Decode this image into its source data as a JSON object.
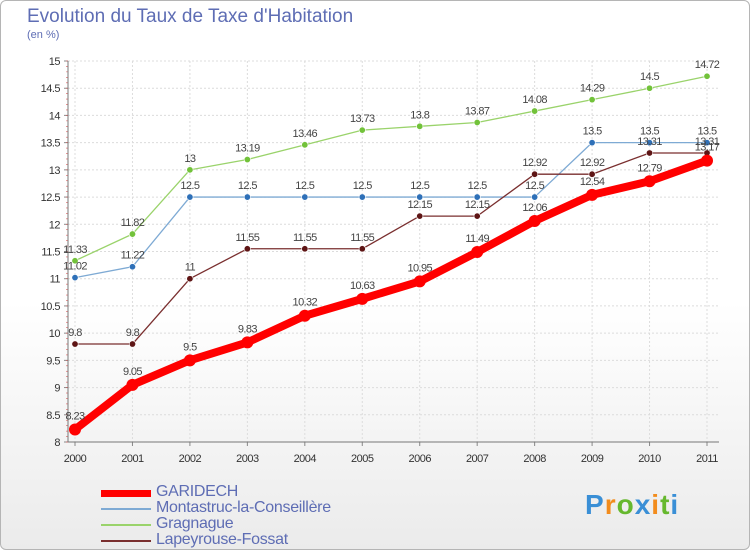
{
  "header": {
    "title": "Evolution du Taux de Taxe d'Habitation",
    "subtitle": "(en %)"
  },
  "chart_data": {
    "type": "line",
    "x": [
      "2000",
      "2001",
      "2002",
      "2003",
      "2004",
      "2005",
      "2006",
      "2007",
      "2008",
      "2009",
      "2010",
      "2011"
    ],
    "ylim": [
      8,
      15
    ],
    "yticks": [
      "8",
      "8.5",
      "9",
      "9.5",
      "10",
      "10.5",
      "11",
      "11.5",
      "12",
      "12.5",
      "13",
      "13.5",
      "14",
      "14.5",
      "15"
    ],
    "grid": true,
    "legend_position": "bottom-left",
    "series": [
      {
        "name": "GARIDECH",
        "color": "#ff0000",
        "marker": "#ff0000",
        "values": [
          8.23,
          9.05,
          9.5,
          9.83,
          10.32,
          10.63,
          10.95,
          11.49,
          12.06,
          12.54,
          12.79,
          13.17
        ],
        "labels": [
          "8.23",
          "9.05",
          "9.5",
          "9.83",
          "10.32",
          "10.63",
          "10.95",
          "11.49",
          "12.06",
          "12.54",
          "12.79",
          "13.17"
        ]
      },
      {
        "name": "Montastruc-la-Conseillère",
        "color": "#7eaad4",
        "marker": "#2e70b8",
        "values": [
          11.02,
          11.22,
          12.5,
          12.5,
          12.5,
          12.5,
          12.5,
          12.5,
          12.5,
          13.5,
          13.5,
          13.5
        ],
        "labels": [
          "11.02",
          "11.22",
          "12.5",
          "12.5",
          "12.5",
          "12.5",
          "12.5",
          "12.5",
          "12.5",
          "13.5",
          "13.5",
          "13.5"
        ]
      },
      {
        "name": "Gragnague",
        "color": "#9ad36b",
        "marker": "#72c23a",
        "values": [
          11.33,
          11.82,
          13,
          13.19,
          13.46,
          13.73,
          13.8,
          13.87,
          14.08,
          14.29,
          14.5,
          14.72
        ],
        "labels": [
          "11.33",
          "11.82",
          "13",
          "13.19",
          "13.46",
          "13.73",
          "13.8",
          "13.87",
          "14.08",
          "14.29",
          "14.5",
          "14.72"
        ]
      },
      {
        "name": "Lapeyrouse-Fossat",
        "color": "#7a2f2f",
        "marker": "#5e1515",
        "values": [
          9.8,
          9.8,
          11,
          11.55,
          11.55,
          11.55,
          12.15,
          12.15,
          12.92,
          12.92,
          13.31,
          13.31
        ],
        "labels": [
          "9.8",
          "9.8",
          "11",
          "11.55",
          "11.55",
          "11.55",
          "12.15",
          "12.15",
          "12.92",
          "12.92",
          "13.31",
          "13.31"
        ]
      }
    ]
  },
  "logo": {
    "letters": [
      "P",
      "r",
      "o",
      "x",
      "i",
      "t",
      "i"
    ],
    "colors": [
      "#3a8fd6",
      "#f28c1d",
      "#66b82e",
      "#3a8fd6",
      "#f28c1d",
      "#66b82e",
      "#3a8fd6"
    ]
  }
}
